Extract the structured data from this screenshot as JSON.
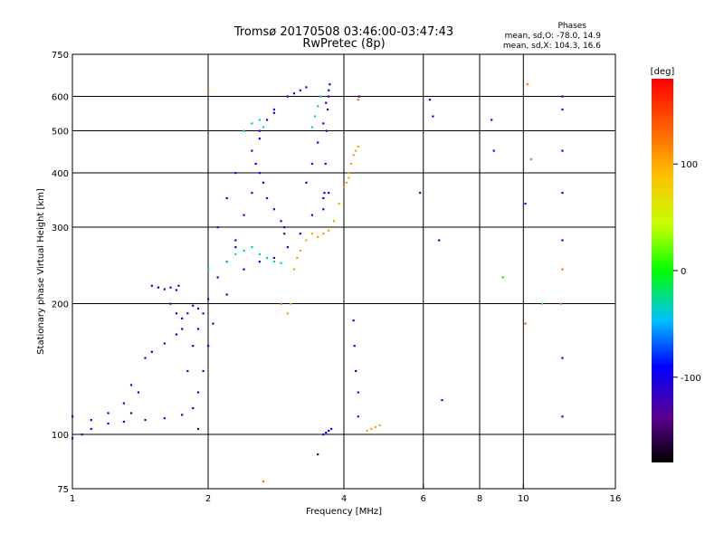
{
  "title_line1": "Tromsø 20170508 03:46:00-03:47:43",
  "title_line2": "RwPretec (8p)",
  "phase_box": {
    "title": "Phases",
    "o_line": "mean, sd,O: -78.0, 14.9",
    "x_line": "mean, sd,X: 104.3, 16.6"
  },
  "chart_data": {
    "type": "scatter",
    "xlabel": "Frequency [MHz]",
    "ylabel": "Stationary phase Virtual Height [km]",
    "xscale": "log",
    "yscale": "log",
    "xlim": [
      1,
      16
    ],
    "ylim": [
      75,
      750
    ],
    "xticks": [
      1,
      2,
      4,
      6,
      8,
      10,
      16
    ],
    "xticklabels": [
      "1",
      "2",
      "4",
      "6",
      "8",
      "10",
      "16"
    ],
    "yticks": [
      75,
      100,
      200,
      300,
      400,
      500,
      600,
      750
    ],
    "yticklabels": [
      "75",
      "100",
      "200",
      "300",
      "400",
      "500",
      "600",
      "750"
    ],
    "grid_x": [
      2,
      4,
      6,
      8,
      10
    ],
    "grid_y": [
      100,
      200,
      300,
      400,
      500,
      600
    ],
    "colorbar": {
      "label": "[deg]",
      "range": [
        -180,
        180
      ],
      "ticks": [
        100,
        0,
        -100
      ],
      "ticklabels": [
        "100",
        "0",
        "-100"
      ]
    },
    "series": [
      {
        "phase": -95,
        "traces": [
          {
            "f": [
              1.0,
              1.05,
              1.1,
              1.2,
              1.3,
              1.45,
              1.6,
              1.75,
              1.85,
              1.9,
              1.95,
              2.0
            ],
            "h": [
              98,
              100,
              103,
              106,
              107,
              108,
              109,
              111,
              115,
              125,
              140,
              160
            ]
          },
          {
            "f": [
              1.0,
              1.1,
              1.2,
              1.3,
              1.35,
              1.4
            ],
            "h": [
              110,
              108,
              112,
              118,
              130,
              125
            ]
          },
          {
            "f": [
              1.45,
              1.5,
              1.6,
              1.7,
              1.75
            ],
            "h": [
              150,
              155,
              162,
              170,
              175
            ]
          },
          {
            "f": [
              1.5,
              1.55,
              1.6,
              1.65,
              1.7,
              1.72
            ],
            "h": [
              220,
              218,
              216,
              218,
              215,
              220
            ]
          },
          {
            "f": [
              1.65,
              1.7,
              1.75,
              1.8,
              1.85,
              1.9
            ],
            "h": [
              200,
              190,
              185,
              190,
              198,
              195
            ]
          },
          {
            "f": [
              1.8,
              1.85,
              1.9,
              1.95,
              2.0,
              2.1,
              2.2,
              2.3
            ],
            "h": [
              140,
              160,
              175,
              190,
              205,
              230,
              250,
              270
            ]
          },
          {
            "f": [
              2.05,
              2.2,
              2.4,
              2.6,
              2.8,
              3.0,
              3.2,
              3.4,
              3.6,
              3.7
            ],
            "h": [
              180,
              210,
              240,
              250,
              255,
              270,
              290,
              320,
              350,
              360
            ]
          },
          {
            "f": [
              2.1,
              2.2,
              2.3,
              2.5,
              2.6,
              2.8,
              3.0,
              3.1,
              3.2,
              3.3
            ],
            "h": [
              300,
              350,
              400,
              450,
              500,
              550,
              600,
              610,
              620,
              630
            ]
          },
          {
            "f": [
              3.3,
              3.4,
              3.5,
              3.6,
              3.65,
              3.7,
              3.72
            ],
            "h": [
              380,
              420,
              470,
              520,
              580,
              620,
              640
            ]
          },
          {
            "f": [
              2.3,
              2.4,
              2.5,
              2.55,
              2.6,
              2.7,
              2.8
            ],
            "h": [
              280,
              320,
              360,
              420,
              480,
              530,
              560
            ]
          },
          {
            "f": [
              2.6,
              2.65,
              2.7,
              2.8,
              2.9,
              2.95
            ],
            "h": [
              400,
              380,
              350,
              330,
              310,
              300
            ]
          },
          {
            "f": [
              3.6,
              3.62,
              3.64,
              3.66,
              3.68,
              3.7
            ],
            "h": [
              330,
              360,
              420,
              500,
              560,
              600
            ]
          }
        ]
      },
      {
        "phase": -40,
        "traces": [
          {
            "f": [
              2.0,
              2.2,
              2.3,
              2.4,
              2.5,
              2.6,
              2.7,
              2.8,
              2.9
            ],
            "h": [
              240,
              250,
              260,
              265,
              270,
              260,
              255,
              250,
              248
            ]
          },
          {
            "f": [
              2.4,
              2.5,
              2.6,
              2.65
            ],
            "h": [
              500,
              520,
              530,
              510
            ]
          },
          {
            "f": [
              3.4,
              3.45,
              3.5,
              3.55
            ],
            "h": [
              510,
              540,
              570,
              600
            ]
          }
        ]
      },
      {
        "phase": 105,
        "traces": [
          {
            "f": [
              3.0,
              3.05,
              3.1,
              3.15,
              3.2,
              3.3,
              3.4,
              3.5,
              3.6,
              3.7,
              3.8,
              3.9,
              4.0,
              4.1
            ],
            "h": [
              190,
              200,
              240,
              255,
              265,
              280,
              290,
              285,
              290,
              295,
              310,
              340,
              370,
              390
            ]
          },
          {
            "f": [
              4.05,
              4.1,
              4.15,
              4.2,
              4.25,
              4.3
            ],
            "h": [
              380,
              400,
              420,
              440,
              450,
              460
            ]
          },
          {
            "f": [
              4.5,
              4.6,
              4.7,
              4.8
            ],
            "h": [
              102,
              103,
              104,
              105
            ]
          }
        ]
      },
      {
        "phase": -100,
        "traces": [
          {
            "f": [
              3.6,
              3.65,
              3.7,
              3.75
            ],
            "h": [
              100,
              101,
              102,
              103
            ]
          },
          {
            "f": [
              4.2,
              4.22,
              4.25,
              4.3,
              4.3,
              4.32
            ],
            "h": [
              183,
              160,
              140,
              125,
              110,
              600
            ]
          },
          {
            "f": [
              5.9,
              6.2,
              6.3,
              6.5,
              6.6
            ],
            "h": [
              360,
              590,
              540,
              280,
              120
            ]
          },
          {
            "f": [
              8.5,
              8.6,
              10.1,
              12.2,
              12.2,
              12.2,
              12.2,
              12.2,
              12.2,
              12.2
            ],
            "h": [
              530,
              450,
              340,
              600,
              560,
              450,
              360,
              280,
              150,
              110
            ]
          }
        ]
      },
      {
        "phase": 130,
        "traces": [
          {
            "f": [
              2.0,
              2.65,
              2.9,
              4.3,
              10.2,
              10.4,
              10.1
            ],
            "h": [
              620,
              78,
              200,
              590,
              640,
              430,
              180
            ]
          },
          {
            "f": [
              9.0,
              12.1,
              12.2
            ],
            "h": [
              230,
              200,
              240
            ]
          }
        ]
      },
      {
        "phase": 0,
        "traces": [
          {
            "f": [
              9.0,
              11.0
            ],
            "h": [
              230,
              200
            ]
          }
        ]
      },
      {
        "phase": -150,
        "traces": [
          {
            "f": [
              1.35,
              1.9,
              2.95,
              3.5
            ],
            "h": [
              112,
              103,
              290,
              90
            ]
          }
        ]
      }
    ]
  }
}
